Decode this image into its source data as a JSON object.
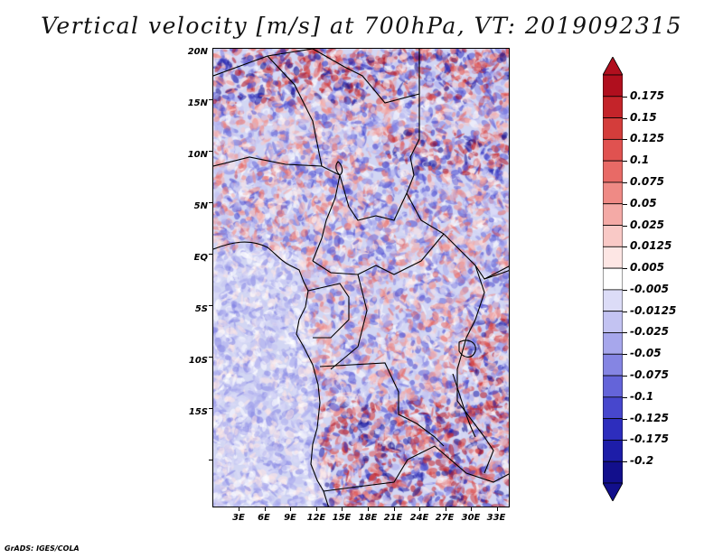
{
  "title": "Vertical velocity [m/s] at 700hPa, VT: 2019092315",
  "credit": "GrADS: IGES/COLA",
  "map": {
    "lat_labels": [
      "20N",
      "15N",
      "10N",
      "5N",
      "EQ",
      "5S",
      "10S",
      "15S"
    ],
    "lon_labels": [
      "3E",
      "6E",
      "9E",
      "12E",
      "15E",
      "18E",
      "21E",
      "24E",
      "27E",
      "30E",
      "33E"
    ],
    "field_colors": {
      "positive": "#c8322b",
      "negative": "#3b3bd0",
      "near_zero": "#ffffff"
    }
  },
  "colorbar": {
    "labels": [
      "0.175",
      "0.15",
      "0.125",
      "0.1",
      "0.075",
      "0.05",
      "0.025",
      "0.0125",
      "0.005",
      "-0.005",
      "-0.0125",
      "-0.025",
      "-0.05",
      "-0.075",
      "-0.1",
      "-0.125",
      "-0.175",
      "-0.2"
    ],
    "colors": [
      "#b00f1e",
      "#c4242a",
      "#d43d3b",
      "#e05250",
      "#e86a66",
      "#ef8a85",
      "#f4aaa6",
      "#f9c9c6",
      "#fde6e4",
      "#ffffff",
      "#dcdcf7",
      "#c3c3f2",
      "#a7a7ec",
      "#8585e3",
      "#6464d9",
      "#4747cd",
      "#2d2dbd",
      "#1d1da8",
      "#120f8c"
    ]
  }
}
